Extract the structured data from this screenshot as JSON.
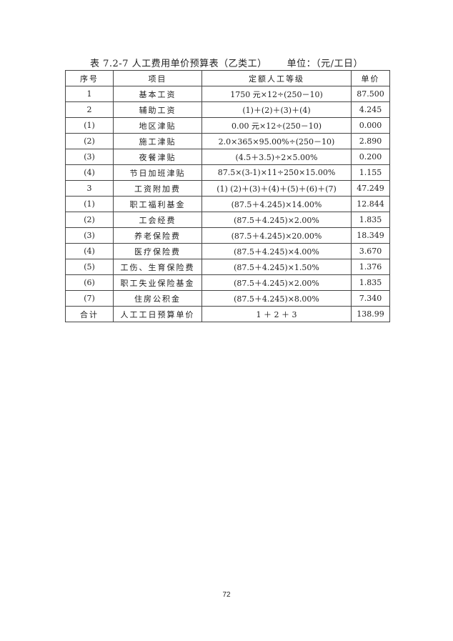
{
  "title": "表 7.2-7 人工费用单价预算表（乙类工）",
  "unit": "单位：（元/工日）",
  "headers": [
    "序号",
    "项目",
    "定额人工等级",
    "单价"
  ],
  "rows": [
    [
      "1",
      "基本工资",
      "1750 元×12÷(250－10)",
      "87.500"
    ],
    [
      "2",
      "辅助工资",
      "(1)＋(2)＋(3)＋(4)",
      "4.245"
    ],
    [
      "(1)",
      "地区津贴",
      "0.00 元×12÷(250－10)",
      "0.000"
    ],
    [
      "(2)",
      "施工津贴",
      "2.0×365×95.00%÷(250－10)",
      "2.890"
    ],
    [
      "(3)",
      "夜餐津贴",
      "(4.5＋3.5)÷2×5.00%",
      "0.200"
    ],
    [
      "(4)",
      "节日加班津贴",
      "87.5×(3-1)×11÷250×15.00%",
      "1.155"
    ],
    [
      "3",
      "工资附加费",
      "(1)  (2)＋(3)＋(4)＋(5)＋(6)＋(7)",
      "47.249"
    ],
    [
      "(1)",
      "职工福利基金",
      "(87.5＋4.245)×14.00%",
      "12.844"
    ],
    [
      "(2)",
      "工会经费",
      "(87.5＋4.245)×2.00%",
      "1.835"
    ],
    [
      "(3)",
      "养老保险费",
      "(87.5＋4.245)×20.00%",
      "18.349"
    ],
    [
      "(4)",
      "医疗保险费",
      "(87.5＋4.245)×4.00%",
      "3.670"
    ],
    [
      "(5)",
      "工伤、生育保险费",
      "(87.5＋4.245)×1.50%",
      "1.376"
    ],
    [
      "(6)",
      "职工失业保险基金",
      "(87.5＋4.245)×2.00%",
      "1.835"
    ],
    [
      "(7)",
      "住房公积金",
      "(87.5＋4.245)×8.00%",
      "7.340"
    ],
    [
      "合计",
      "人工工日预算单价",
      "1 ＋ 2 ＋ 3",
      "138.99"
    ]
  ],
  "page_number": "72"
}
